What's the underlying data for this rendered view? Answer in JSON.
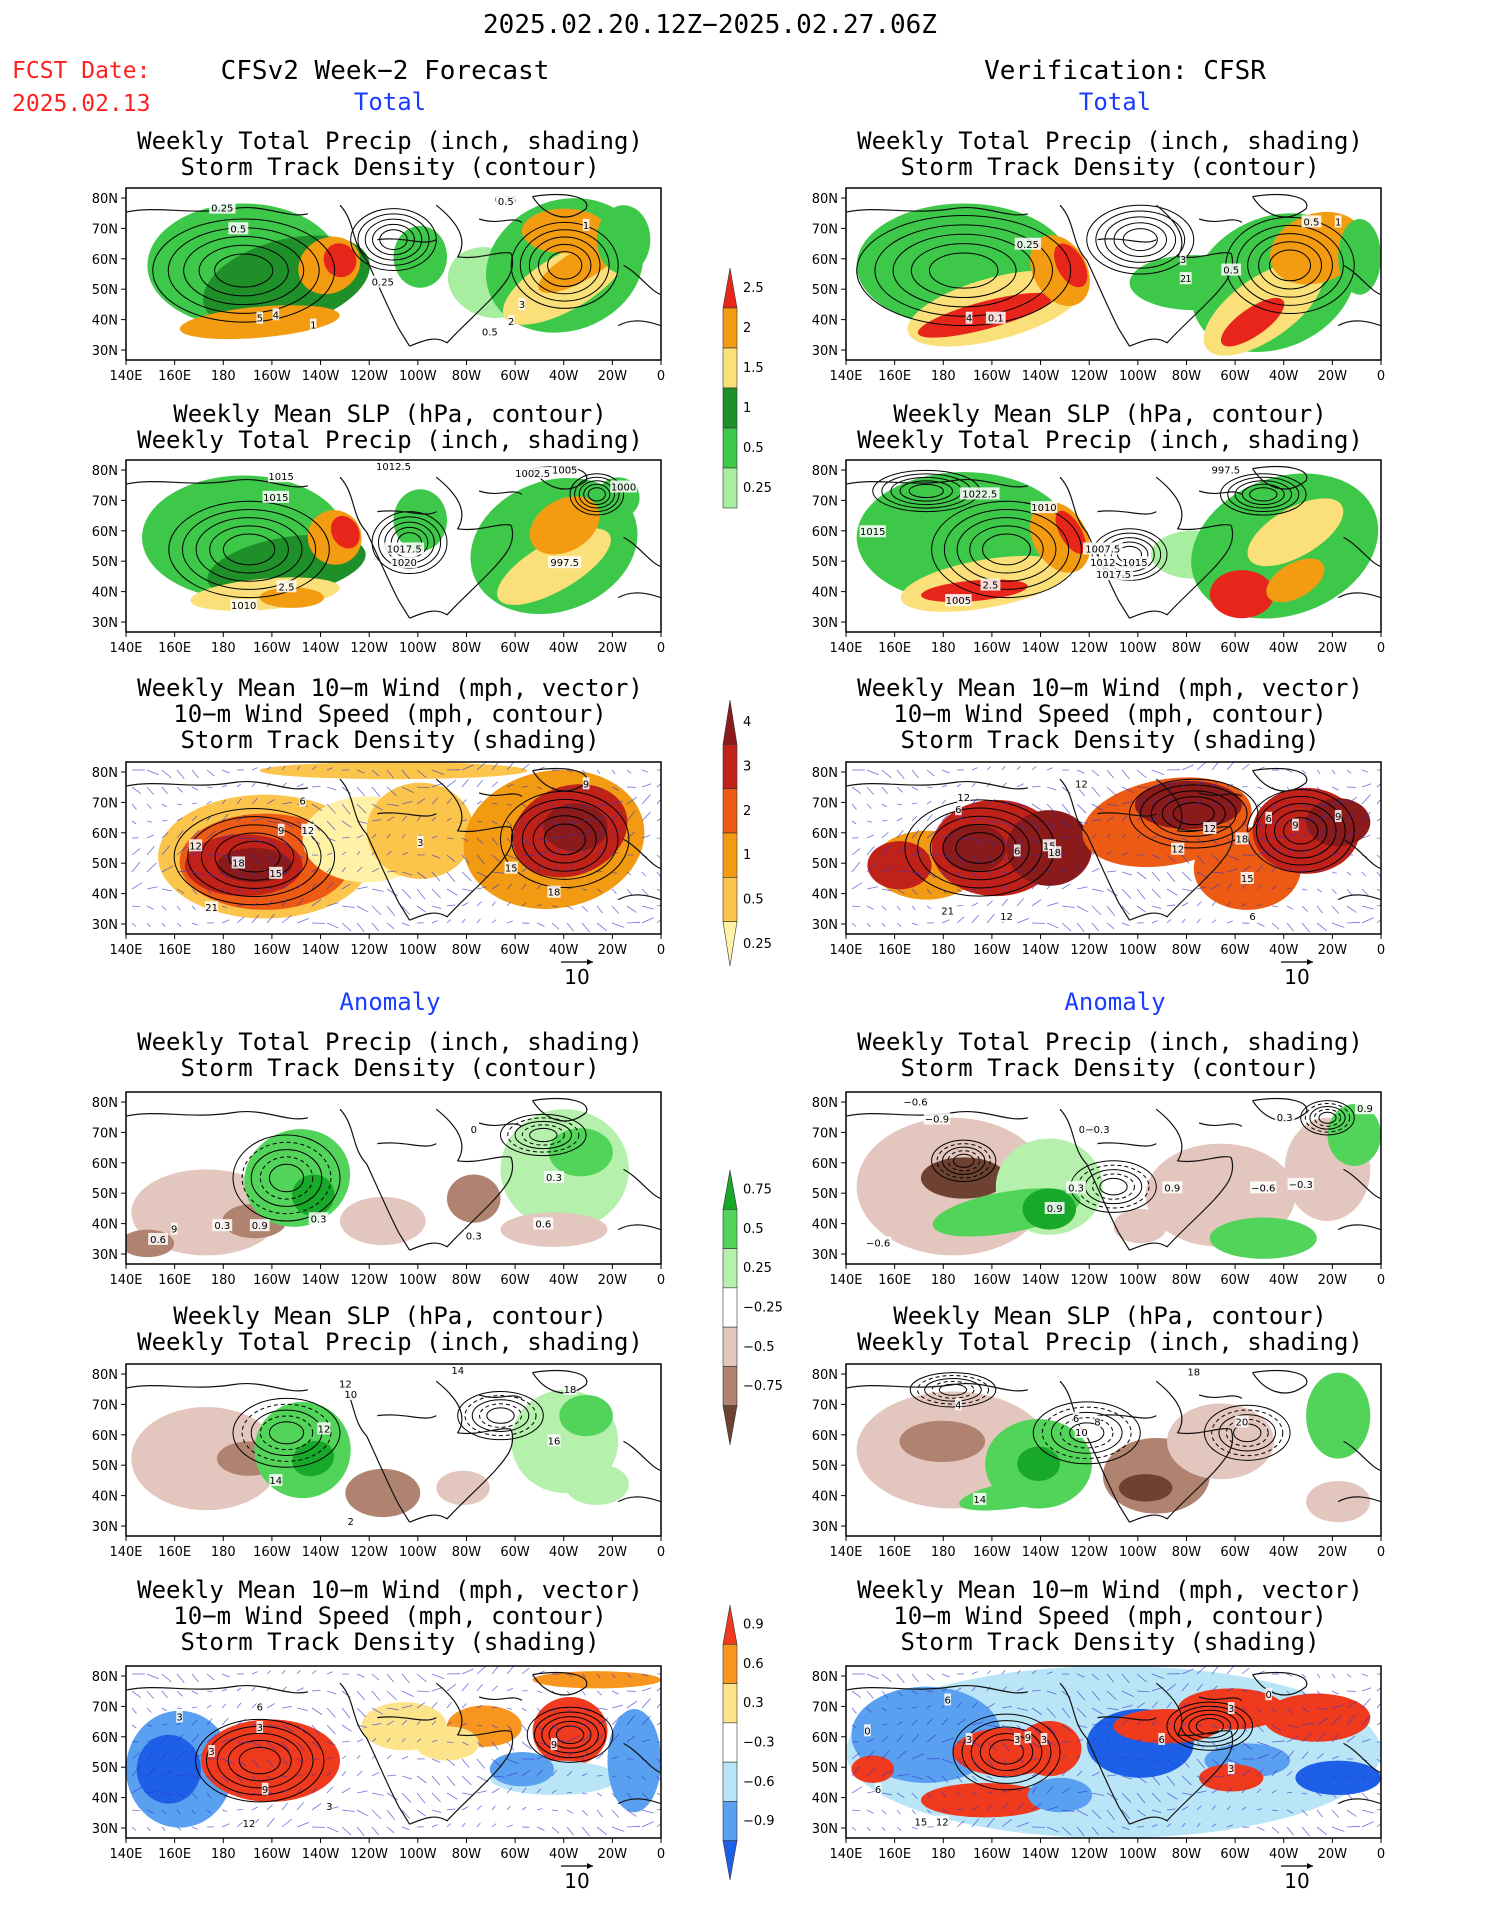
{
  "header": {
    "period": "2025.02.20.12Z−2025.02.27.06Z",
    "fcst_label": "FCST Date:",
    "fcst_date": "2025.02.13",
    "left_title": "CFSv2 Week−2 Forecast",
    "right_title": "Verification: CFSR"
  },
  "sections": {
    "total": "Total",
    "anomaly": "Anomaly"
  },
  "panel_titles": {
    "precip_storm": [
      "Weekly Total Precip (inch, shading)",
      "Storm Track Density (contour)"
    ],
    "slp_precip": [
      "Weekly Mean SLP (hPa, contour)",
      "Weekly Total Precip (inch, shading)"
    ],
    "wind_storm": [
      "Weekly Mean 10−m Wind (mph, vector)",
      "10−m Wind Speed (mph, contour)",
      "Storm Track Density (shading)"
    ]
  },
  "axes": {
    "lat_labels": [
      "80N",
      "70N",
      "60N",
      "50N",
      "40N",
      "30N"
    ],
    "lon_labels": [
      "140E",
      "160E",
      "180",
      "160W",
      "140W",
      "120W",
      "100W",
      "80W",
      "60W",
      "40W",
      "20W",
      "0"
    ]
  },
  "vector_ref": "10",
  "colorbars": {
    "precip_total": {
      "labels": [
        "2.5",
        "2",
        "1.5",
        "1",
        "0.5",
        "0.25"
      ],
      "colors": [
        "#e8251b",
        "#f39c12",
        "#fbe07a",
        "#1f8f2a",
        "#3ec84a",
        "#a8eea0"
      ]
    },
    "storm_total": {
      "labels": [
        "4",
        "3",
        "2",
        "1",
        "0.5",
        "0.25"
      ],
      "colors": [
        "#8b1a1a",
        "#c0221a",
        "#ec5a14",
        "#f29a12",
        "#fbc44a",
        "#fff1a6"
      ]
    },
    "precip_anom": {
      "labels": [
        "0.75",
        "0.5",
        "0.25",
        "−0.25",
        "−0.5",
        "−0.75"
      ],
      "colors": [
        "#18a82a",
        "#52d35a",
        "#b5f0ac",
        "#ffffff",
        "#e3c6bd",
        "#b08270",
        "#6e4232"
      ]
    },
    "storm_anom": {
      "labels": [
        "0.9",
        "0.6",
        "0.3",
        "−0.3",
        "−0.6",
        "−0.9"
      ],
      "colors": [
        "#f03a1e",
        "#f7951f",
        "#fde38a",
        "#ffffff",
        "#b9e5f7",
        "#5aa0f0",
        "#1d5fe6"
      ]
    }
  },
  "contour_labels": {
    "ftp": [
      "0.25",
      "0.5",
      "0.25",
      "0.5",
      "1",
      "0.25",
      "5",
      "4",
      "1",
      "3",
      "2",
      "0.5"
    ],
    "vtp": [
      "0.25",
      "1",
      "0.5",
      "3",
      "2",
      "0.5",
      "1",
      "4",
      "0.1"
    ],
    "fts": [
      "1012.5",
      "1015",
      "1015",
      "1002.5",
      "1005",
      "1000",
      "1017.5",
      "1020",
      "997.5",
      "2.5",
      "1010"
    ],
    "vts": [
      "1022.5",
      "1010",
      "997.5",
      "1015",
      "1007.5",
      "1012",
      "1015",
      "1017.5",
      "2.5",
      "1005"
    ],
    "ftw": [
      "6",
      "9",
      "12",
      "12",
      "18",
      "15",
      "21",
      "3",
      "9",
      "15",
      "18"
    ],
    "vtw": [
      "12",
      "12",
      "6",
      "15",
      "18",
      "12",
      "21",
      "12",
      "9",
      "6",
      "12",
      "18",
      "6",
      "9",
      "15",
      "6"
    ],
    "fap": [
      "0",
      "0.3",
      "0.9",
      "0.3",
      "0.3",
      "0.6",
      "0.3",
      "0.6",
      "9"
    ],
    "vap": [
      "−0.6",
      "−0.9",
      "0.3",
      "−0.3",
      "0.3",
      "0.9",
      "0.9",
      "−0.6",
      "−0.6",
      "0.3",
      "−0.3",
      "0.9"
    ],
    "fas": [
      "12",
      "10",
      "14",
      "18",
      "16",
      "12",
      "14",
      "2"
    ],
    "vas": [
      "18",
      "4",
      "6",
      "10",
      "20",
      "14",
      "8"
    ],
    "faw": [
      "3",
      "6",
      "3",
      "3",
      "3",
      "9",
      "9",
      "12"
    ],
    "vaw": [
      "6",
      "0",
      "3",
      "3",
      "3",
      "6",
      "9",
      "3",
      "0",
      "6",
      "3",
      "15",
      "12"
    ]
  }
}
